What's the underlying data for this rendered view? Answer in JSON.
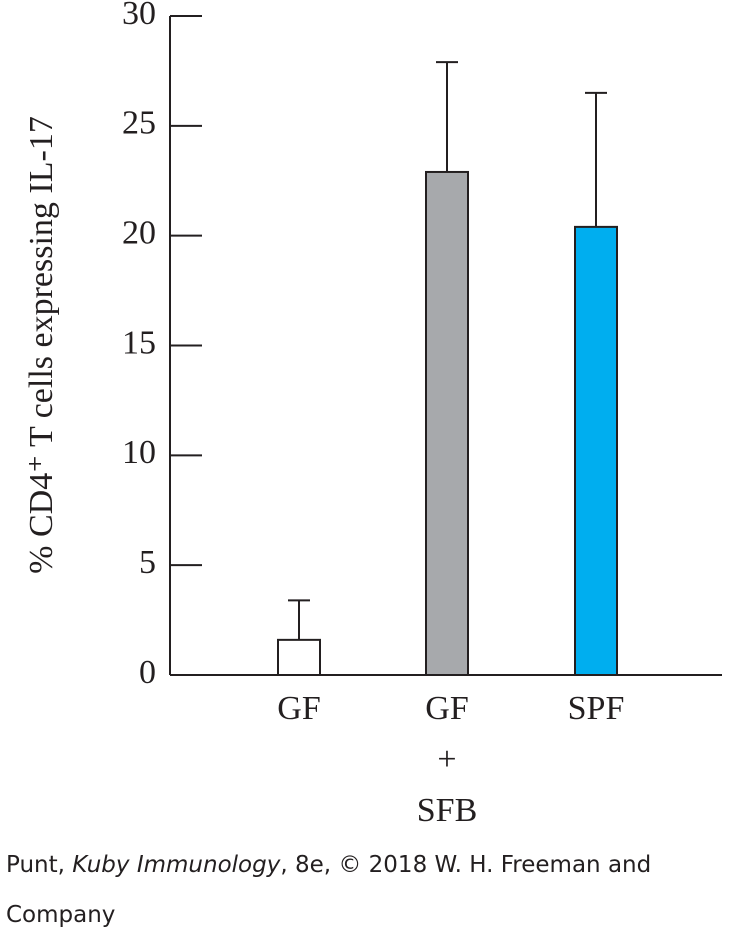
{
  "chart_data": {
    "type": "bar",
    "ylabel": "% CD4⁺ T cells expressing IL-17",
    "categories": [
      [
        "GF"
      ],
      [
        "GF",
        "+",
        "SFB"
      ],
      [
        "SPF"
      ]
    ],
    "values": [
      1.6,
      22.9,
      20.4
    ],
    "errors": [
      1.8,
      5.0,
      6.1
    ],
    "colors": [
      "#ffffff",
      "#a7a9ac",
      "#00aeef"
    ],
    "ylim": [
      0,
      30
    ],
    "yticks": [
      0,
      5,
      10,
      15,
      20,
      25,
      30
    ],
    "grid": false
  },
  "caption": [
    "Punt, ",
    "Kuby Immunology",
    ", 8e, © 2018 W. H. Freeman and Company"
  ]
}
